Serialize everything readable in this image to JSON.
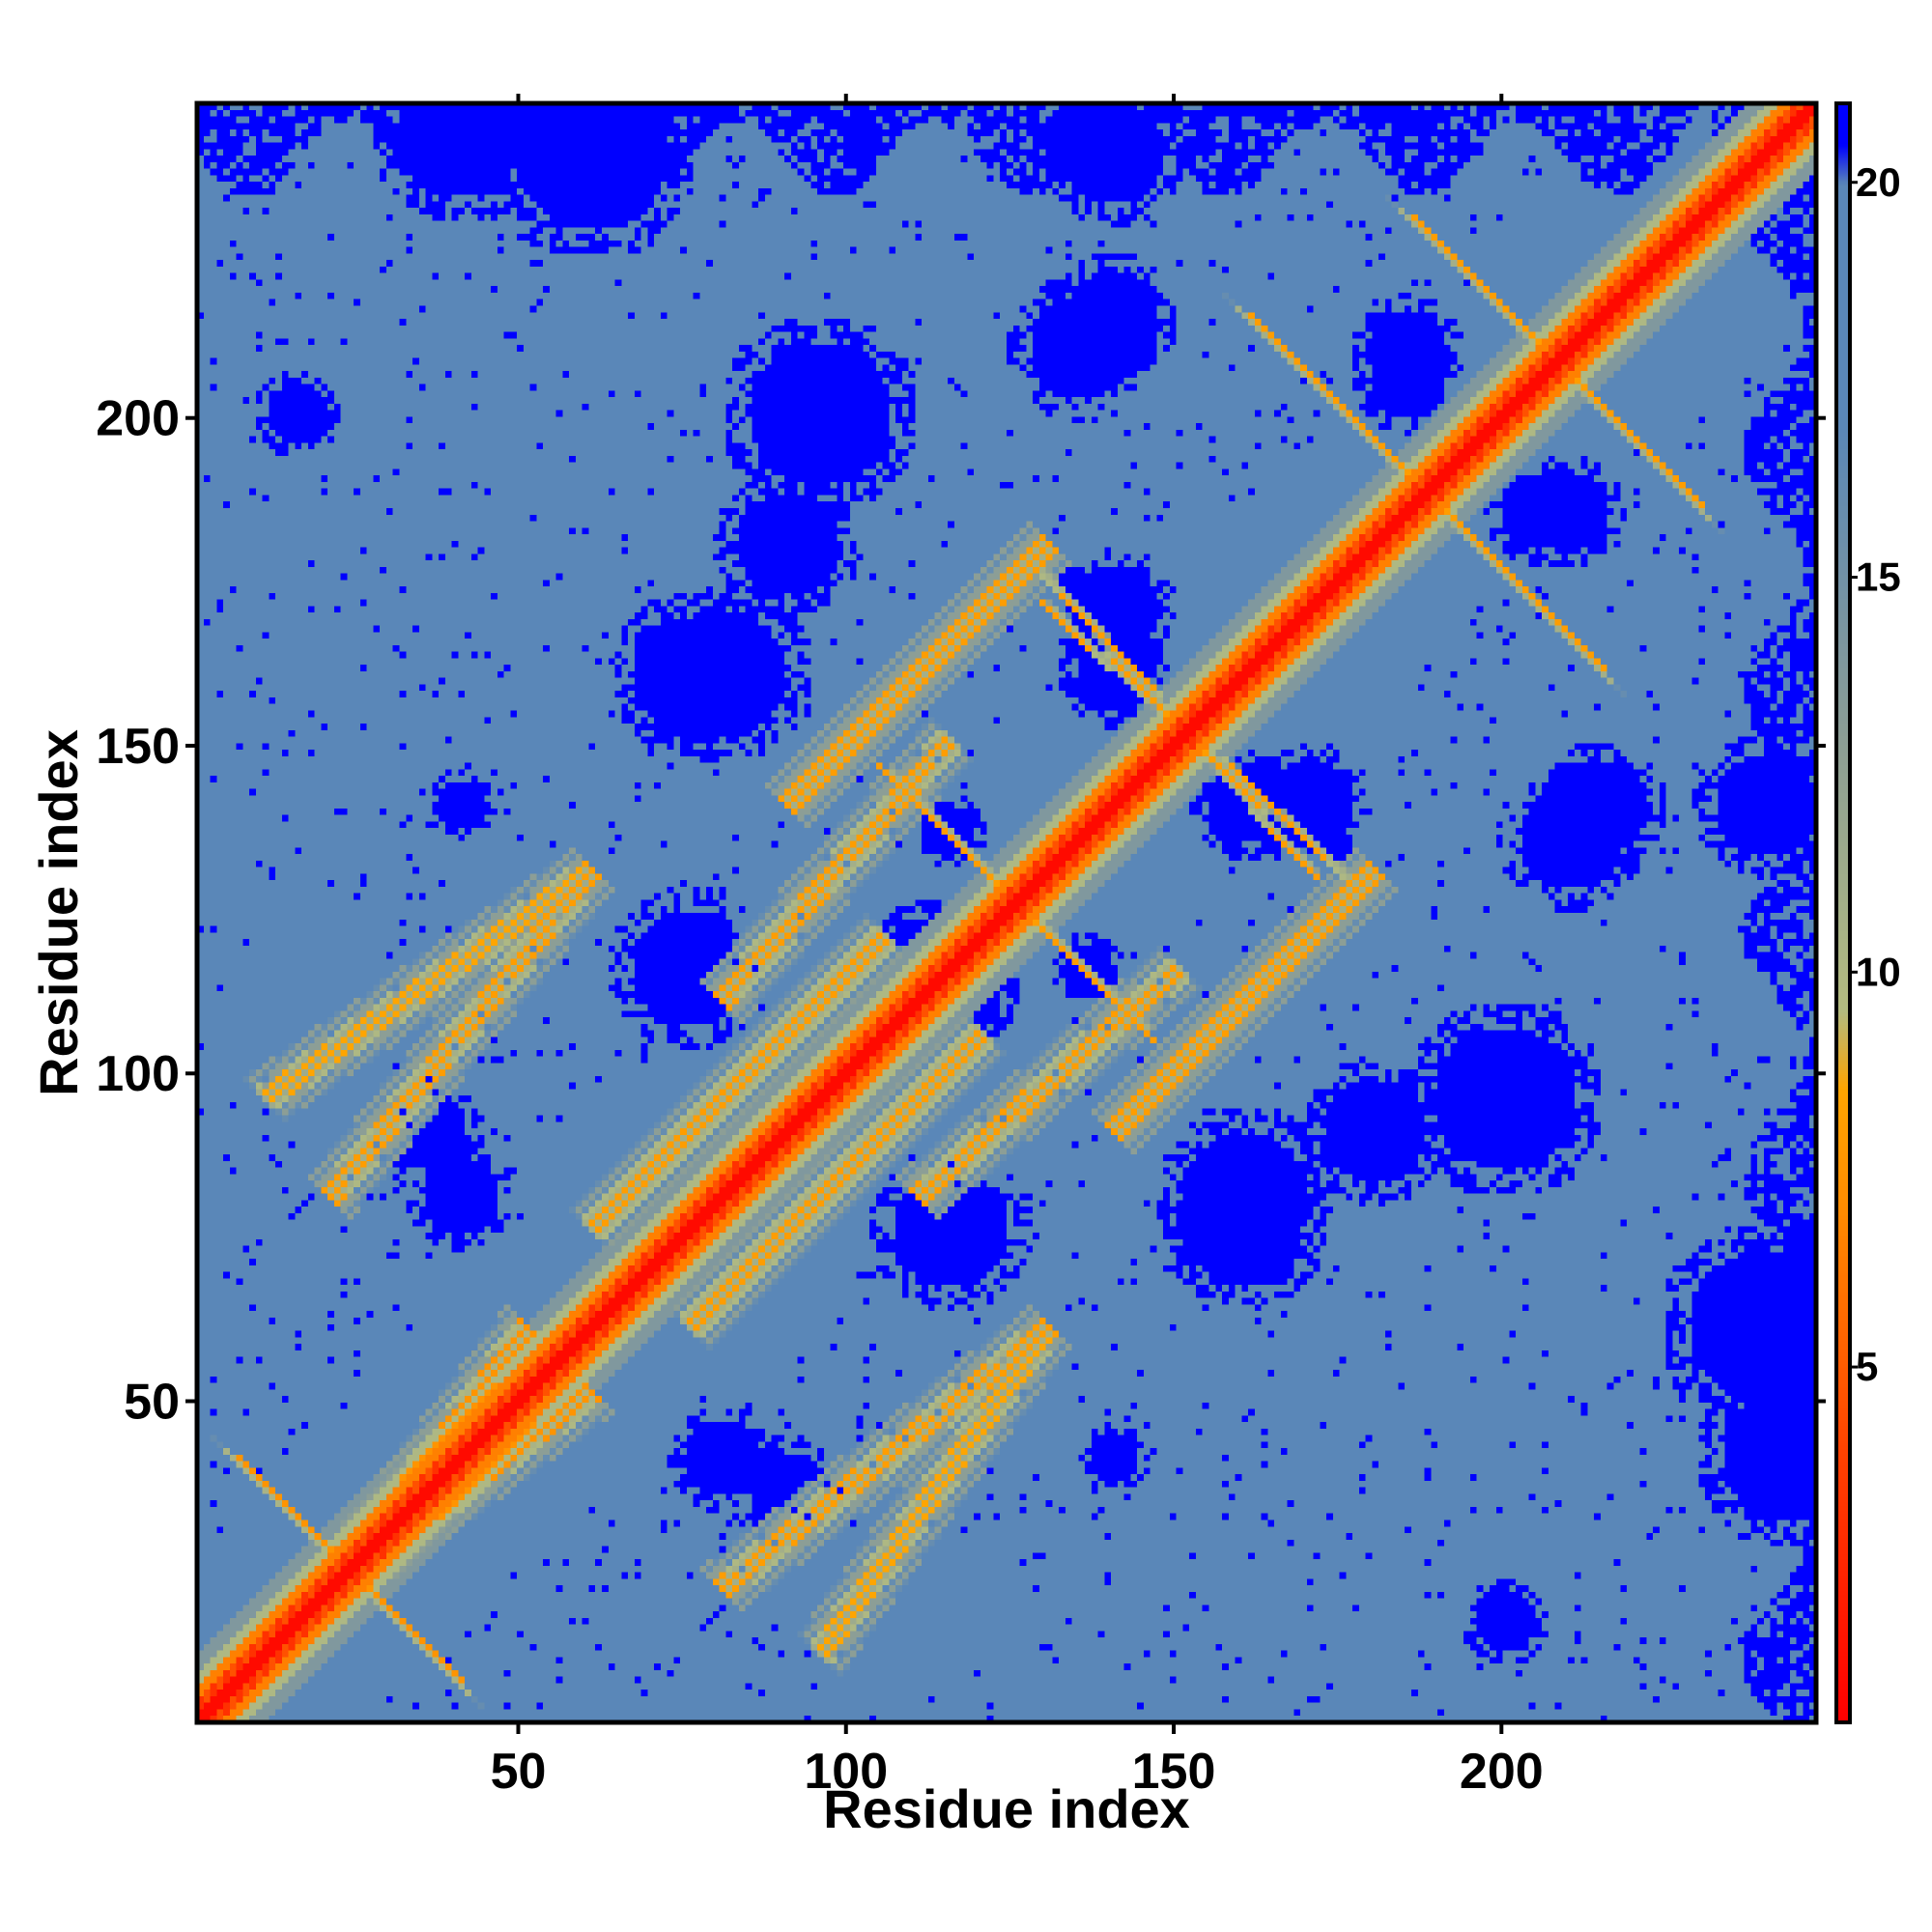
{
  "chart_data": {
    "type": "heatmap",
    "title": "",
    "xlabel": "Residue index",
    "ylabel": "Residue index",
    "xlim": [
      1,
      248
    ],
    "ylim": [
      1,
      248
    ],
    "x_ticks": [
      50,
      100,
      150,
      200
    ],
    "y_ticks": [
      50,
      100,
      150,
      200
    ],
    "colorbar": {
      "range": [
        0.5,
        21
      ],
      "ticks": [
        5,
        10,
        15,
        20
      ],
      "stops": [
        {
          "value": 0.5,
          "color": "#ff0000"
        },
        {
          "value": 4.0,
          "color": "#ff4500"
        },
        {
          "value": 7.0,
          "color": "#ff8c00"
        },
        {
          "value": 8.5,
          "color": "#ffa500"
        },
        {
          "value": 9.5,
          "color": "#b4bc80"
        },
        {
          "value": 13.0,
          "color": "#8c9e96"
        },
        {
          "value": 17.0,
          "color": "#5a87b8"
        },
        {
          "value": 20.0,
          "color": "#5a87b8"
        },
        {
          "value": 20.5,
          "color": "#0000ff"
        }
      ]
    },
    "description_of_values": "Symmetric residue-residue distance map; low values (red) along the diagonal, values near 20 (steel blue) as background, saturated blue (>20) in off-diagonal islands and edges.",
    "diagonal_band": {
      "width": 6,
      "value": 2
    },
    "contact_arcs": [
      {
        "from": [
          5,
          40
        ],
        "to": [
          40,
          5
        ],
        "value": 7.5
      },
      {
        "from": [
          10,
          95
        ],
        "to": [
          60,
          130
        ],
        "value": 8.5
      },
      {
        "from": [
          20,
          20
        ],
        "to": [
          50,
          60
        ],
        "value": 7.5
      },
      {
        "from": [
          60,
          75
        ],
        "to": [
          105,
          120
        ],
        "value": 8
      },
      {
        "from": [
          90,
          140
        ],
        "to": [
          130,
          180
        ],
        "value": 8
      },
      {
        "from": [
          105,
          145
        ],
        "to": [
          145,
          105
        ],
        "value": 8
      },
      {
        "from": [
          130,
          170
        ],
        "to": [
          175,
          130
        ],
        "value": 8
      },
      {
        "from": [
          160,
          215
        ],
        "to": [
          215,
          160
        ],
        "value": 8
      },
      {
        "from": [
          185,
          230
        ],
        "to": [
          230,
          185
        ],
        "value": 8
      },
      {
        "from": [
          80,
          20
        ],
        "to": [
          130,
          60
        ],
        "value": 8
      },
      {
        "from": [
          110,
          80
        ],
        "to": [
          150,
          115
        ],
        "value": 8
      }
    ],
    "far_islands": [
      {
        "center": [
          113,
          113
        ],
        "r": 9
      },
      {
        "center": [
          140,
          138
        ],
        "r": 4
      },
      {
        "center": [
          115,
          136
        ],
        "r": 4
      },
      {
        "center": [
          80,
          160
        ],
        "r": 10
      },
      {
        "center": [
          95,
          200
        ],
        "r": 11
      },
      {
        "center": [
          140,
          170
        ],
        "r": 7
      },
      {
        "center": [
          160,
          140
        ],
        "r": 6
      },
      {
        "center": [
          135,
          210
        ],
        "r": 8
      },
      {
        "center": [
          185,
          210
        ],
        "r": 6
      },
      {
        "center": [
          205,
          185
        ],
        "r": 6
      },
      {
        "center": [
          215,
          140
        ],
        "r": 7
      },
      {
        "center": [
          160,
          75
        ],
        "r": 9
      },
      {
        "center": [
          115,
          75
        ],
        "r": 9
      },
      {
        "center": [
          80,
          40
        ],
        "r": 6
      },
      {
        "center": [
          35,
          90
        ],
        "r": 6
      },
      {
        "center": [
          140,
          40
        ],
        "r": 4
      },
      {
        "center": [
          180,
          90
        ],
        "r": 8
      },
      {
        "center": [
          205,
          95
        ],
        "r": 6
      },
      {
        "center": [
          240,
          60
        ],
        "r": 12
      },
      {
        "center": [
          245,
          240
        ],
        "r": 6
      },
      {
        "center": [
          140,
          240
        ],
        "r": 8
      },
      {
        "center": [
          40,
          243
        ],
        "r": 10
      },
      {
        "center": [
          200,
          15
        ],
        "r": 5
      }
    ]
  }
}
